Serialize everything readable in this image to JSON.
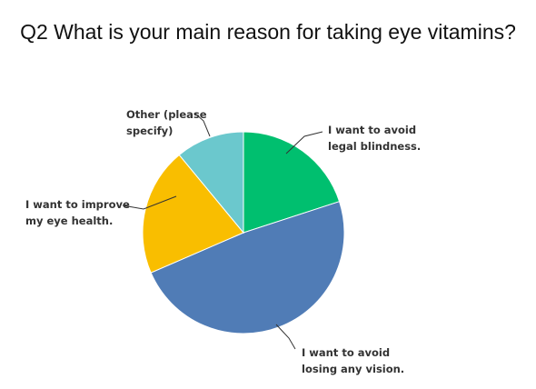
{
  "title": "Q2 What is your main reason for taking eye vitamins?",
  "chart_data": {
    "type": "pie",
    "title": "Q2 What is your main reason for taking eye vitamins?",
    "slices": [
      {
        "label": [
          "I want to avoid",
          "legal blindness."
        ],
        "value": 20.0,
        "color": "#00bf6f"
      },
      {
        "label": [
          "I want to avoid",
          "losing any vision."
        ],
        "value": 48.5,
        "color": "#507cb6"
      },
      {
        "label": [
          "I want to improve",
          "my eye health."
        ],
        "value": 20.5,
        "color": "#f9be00"
      },
      {
        "label": [
          "Other (please",
          "specify)"
        ],
        "value": 11.0,
        "color": "#6bc8cd"
      }
    ],
    "start_angle_deg": 0,
    "direction": "clockwise",
    "legend": "none"
  }
}
